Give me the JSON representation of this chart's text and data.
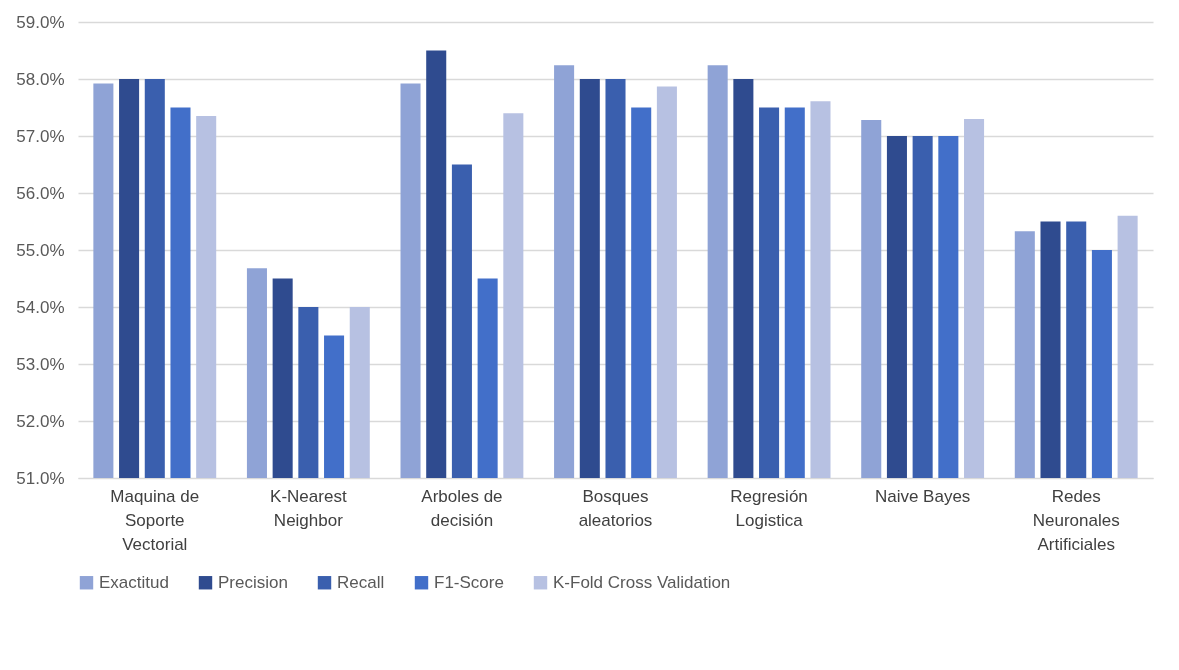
{
  "chart_data": {
    "type": "bar",
    "categories": [
      "Maquina de Soporte Vectorial",
      "K-Nearest Neighbor",
      "Arboles de decisión",
      "Bosques aleatorios",
      "Regresión Logistica",
      "Naive Bayes",
      "Redes Neuronales Artificiales"
    ],
    "series": [
      {
        "name": "Exactitud",
        "color": "#8fa3d6",
        "values": [
          57.92,
          54.68,
          57.92,
          58.24,
          58.24,
          57.28,
          55.33
        ]
      },
      {
        "name": "Precision",
        "color": "#2f4b8f",
        "values": [
          58.0,
          54.5,
          58.5,
          58.0,
          58.0,
          57.0,
          55.5
        ]
      },
      {
        "name": "Recall",
        "color": "#3a5fae",
        "values": [
          58.0,
          54.0,
          56.5,
          58.0,
          57.5,
          57.0,
          55.5
        ]
      },
      {
        "name": "F1-Score",
        "color": "#426fc9",
        "values": [
          57.5,
          53.5,
          54.5,
          57.5,
          57.5,
          57.0,
          55.0
        ]
      },
      {
        "name": "K-Fold Cross Validation",
        "color": "#b7c1e2",
        "values": [
          57.35,
          54.0,
          57.4,
          57.87,
          57.61,
          57.3,
          55.6
        ]
      }
    ],
    "ylim": [
      51,
      59
    ],
    "yticks": [
      {
        "value": 51,
        "label": "51.0%"
      },
      {
        "value": 52,
        "label": "52.0%"
      },
      {
        "value": 53,
        "label": "53.0%"
      },
      {
        "value": 54,
        "label": "54.0%"
      },
      {
        "value": 55,
        "label": "55.0%"
      },
      {
        "value": 56,
        "label": "56.0%"
      },
      {
        "value": 57,
        "label": "57.0%"
      },
      {
        "value": 58,
        "label": "58.0%"
      },
      {
        "value": 59,
        "label": "59.0%"
      }
    ],
    "grid": "y",
    "legend": "bottom"
  }
}
